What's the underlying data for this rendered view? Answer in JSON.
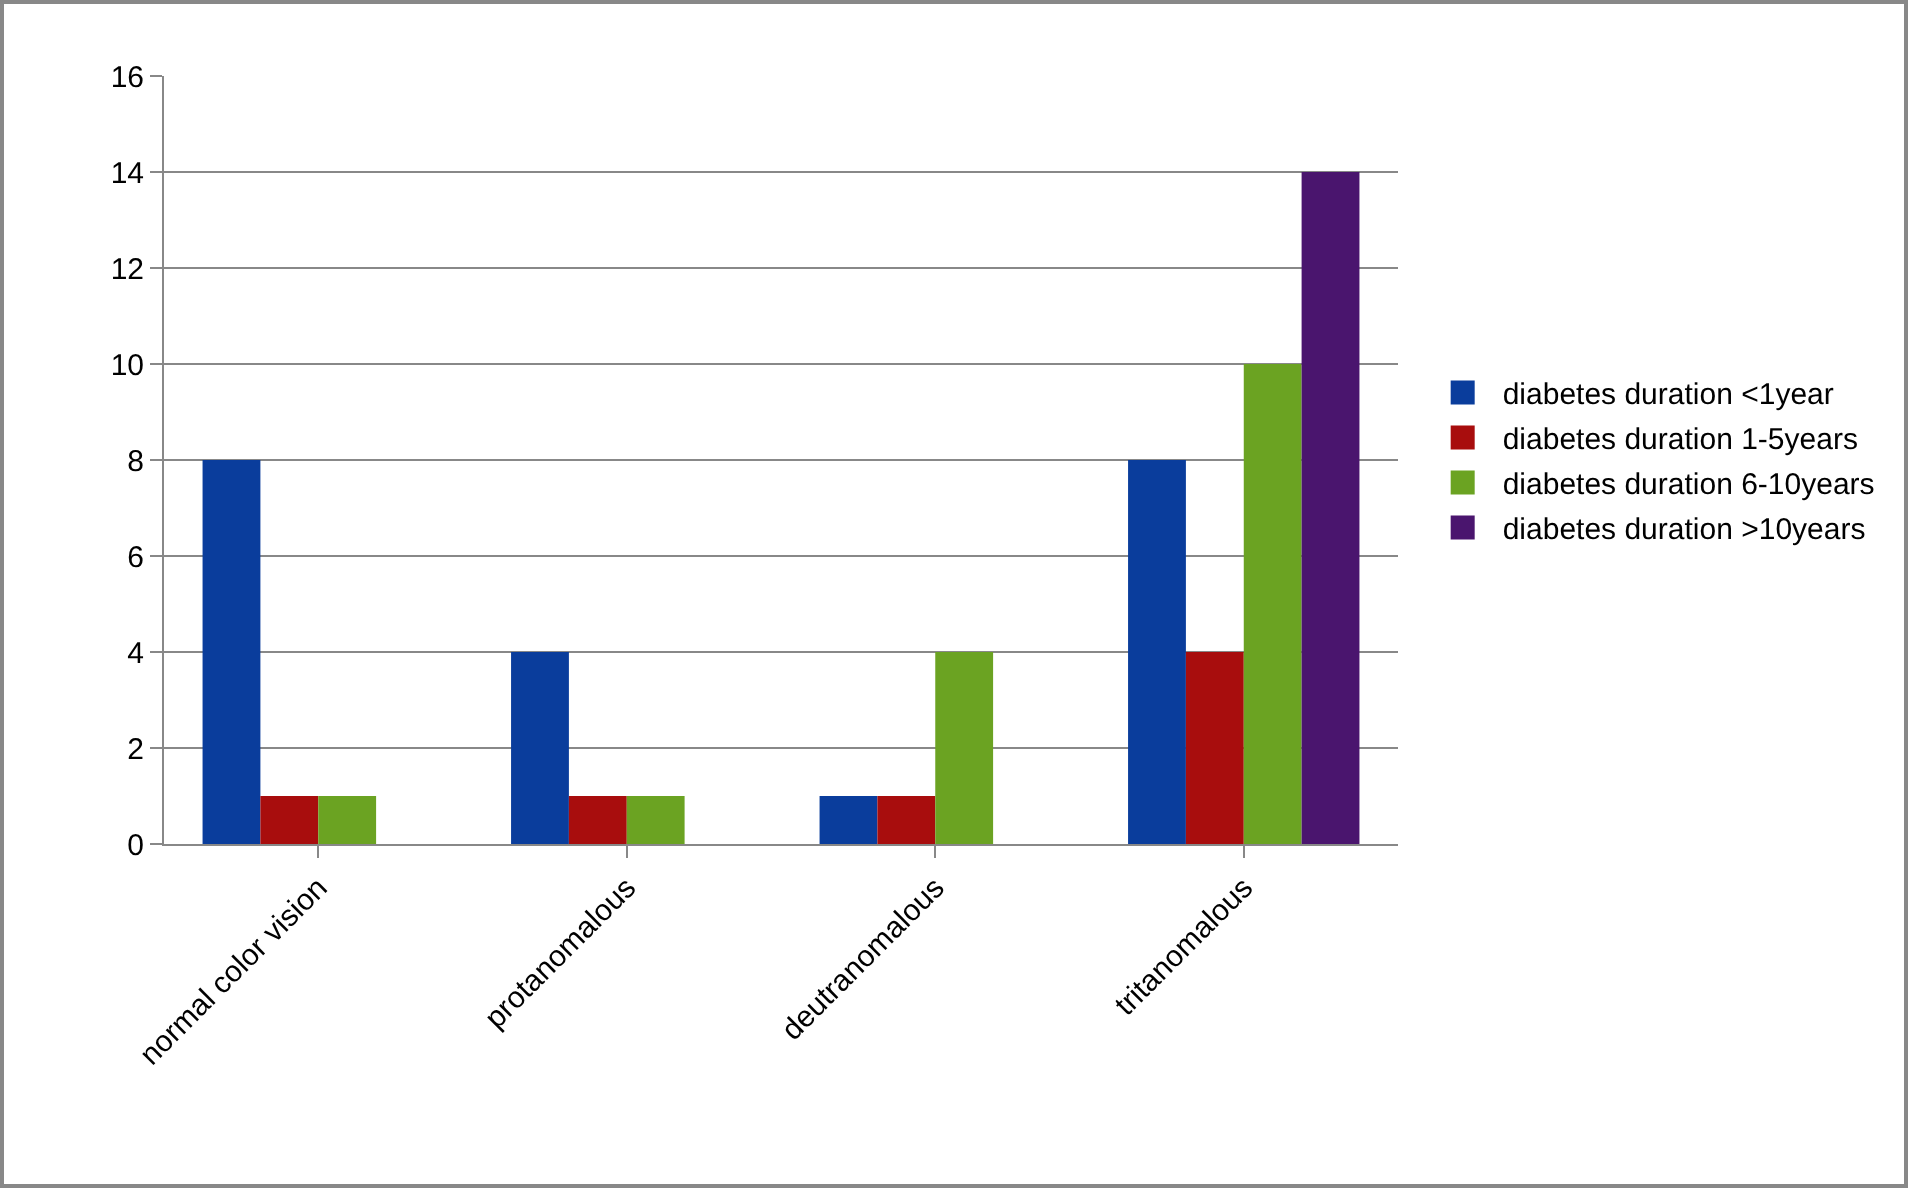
{
  "chart_data": {
    "type": "bar",
    "categories": [
      "normal color vision",
      "protanomalous",
      "deutranomalous",
      "tritanomalous"
    ],
    "series": [
      {
        "name": "diabetes duration <1year",
        "color": "#0a3d9c",
        "values": [
          8,
          4,
          1,
          8
        ]
      },
      {
        "name": "diabetes duration 1-5years",
        "color": "#a80d0d",
        "values": [
          1,
          1,
          1,
          4
        ]
      },
      {
        "name": "diabetes duration 6-10years",
        "color": "#6ba322",
        "values": [
          1,
          1,
          4,
          10
        ]
      },
      {
        "name": "diabetes duration >10years",
        "color": "#4a156e",
        "values": [
          0,
          0,
          0,
          14
        ]
      }
    ],
    "ylim": [
      0,
      16
    ],
    "yticks": [
      0,
      2,
      4,
      6,
      8,
      10,
      12,
      14,
      16
    ],
    "grid": "y",
    "legend": "right"
  }
}
